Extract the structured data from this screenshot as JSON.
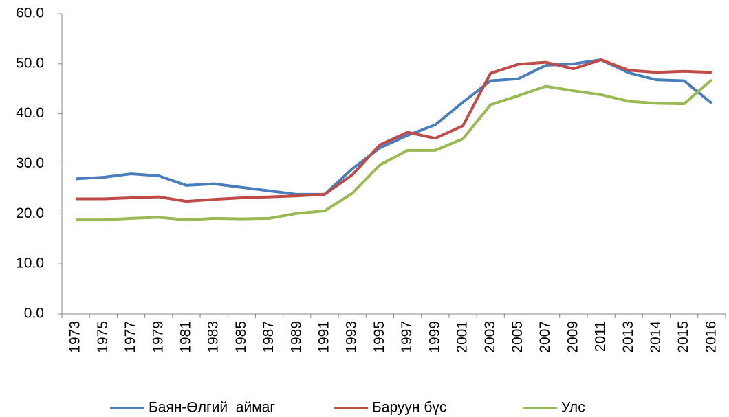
{
  "chart_data": {
    "type": "line",
    "categories": [
      "1973",
      "1975",
      "1977",
      "1979",
      "1981",
      "1983",
      "1985",
      "1987",
      "1989",
      "1991",
      "1993",
      "1995",
      "1997",
      "1999",
      "2001",
      "2003",
      "2005",
      "2007",
      "2009",
      "2011",
      "2013",
      "2014",
      "2015",
      "2016"
    ],
    "series": [
      {
        "name": "Баян-Өлгий  аймаг",
        "color": "#4a7ebb",
        "values": [
          27.0,
          27.3,
          28.0,
          27.6,
          25.7,
          26.0,
          25.3,
          24.6,
          23.9,
          23.9,
          29.0,
          33.2,
          35.7,
          37.8,
          42.3,
          46.6,
          47.0,
          49.7,
          50.0,
          50.8,
          48.2,
          46.8,
          46.6,
          42.1
        ]
      },
      {
        "name": "Баруун бүс",
        "color": "#be4b48",
        "values": [
          23.0,
          23.0,
          23.2,
          23.4,
          22.5,
          22.9,
          23.2,
          23.4,
          23.6,
          23.9,
          27.8,
          33.8,
          36.3,
          35.1,
          37.6,
          48.1,
          49.9,
          50.3,
          49.0,
          50.8,
          48.7,
          48.3,
          48.5,
          48.3
        ]
      },
      {
        "name": "Улс",
        "color": "#98b954",
        "values": [
          18.8,
          18.8,
          19.1,
          19.3,
          18.8,
          19.1,
          19.0,
          19.1,
          20.1,
          20.6,
          24.1,
          29.8,
          32.7,
          32.7,
          35.0,
          41.8,
          43.6,
          45.5,
          44.6,
          43.8,
          42.5,
          42.1,
          42.0,
          46.8
        ]
      }
    ],
    "ylim": [
      0,
      60
    ],
    "yticks": [
      {
        "value": 0,
        "label": "0.0"
      },
      {
        "value": 10,
        "label": "10.0"
      },
      {
        "value": 20,
        "label": "20.0"
      },
      {
        "value": 30,
        "label": "30.0"
      },
      {
        "value": 40,
        "label": "40.0"
      },
      {
        "value": 50,
        "label": "50.0"
      },
      {
        "value": 60,
        "label": "60.0"
      }
    ],
    "legend": "bottom"
  }
}
